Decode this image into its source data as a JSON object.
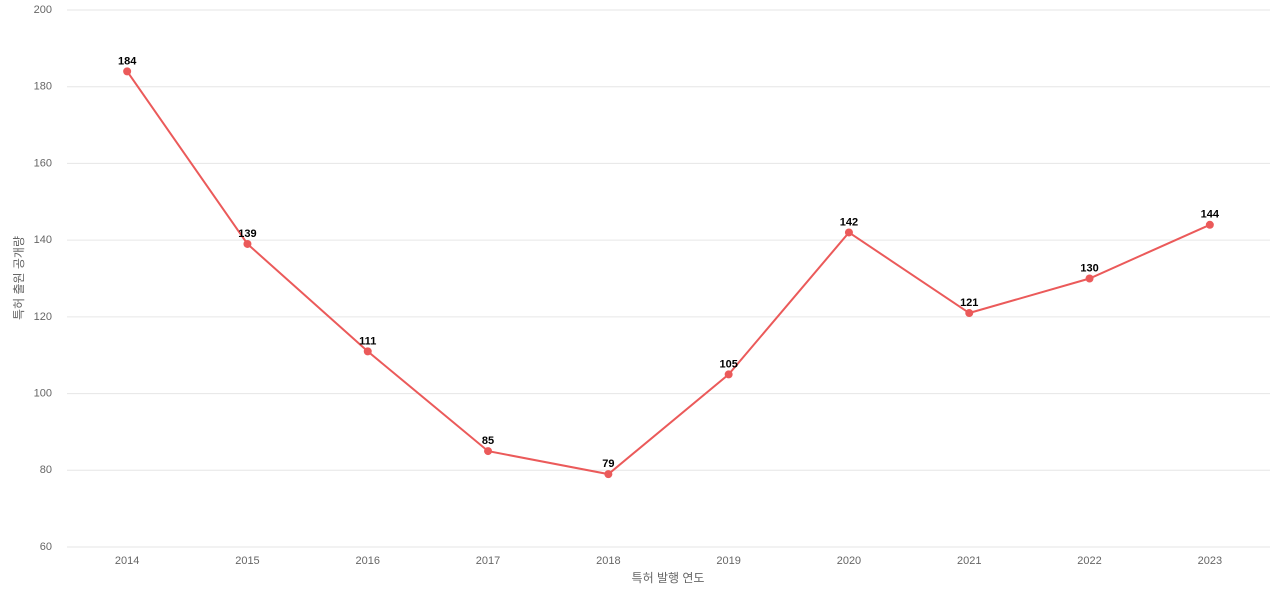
{
  "chart_data": {
    "type": "line",
    "x_label": "특허 발행 연도",
    "y_label": "특허 출원 공개량",
    "categories": [
      "2014",
      "2015",
      "2016",
      "2017",
      "2018",
      "2019",
      "2020",
      "2021",
      "2022",
      "2023"
    ],
    "series": [
      {
        "name": "특허 출원 공개량",
        "color": "#eb5a5a",
        "values": [
          184,
          139,
          111,
          85,
          79,
          105,
          142,
          121,
          130,
          144
        ]
      }
    ],
    "ylim": [
      60,
      200
    ],
    "yticks": [
      60,
      80,
      100,
      120,
      140,
      160,
      180,
      200
    ],
    "grid": true
  }
}
